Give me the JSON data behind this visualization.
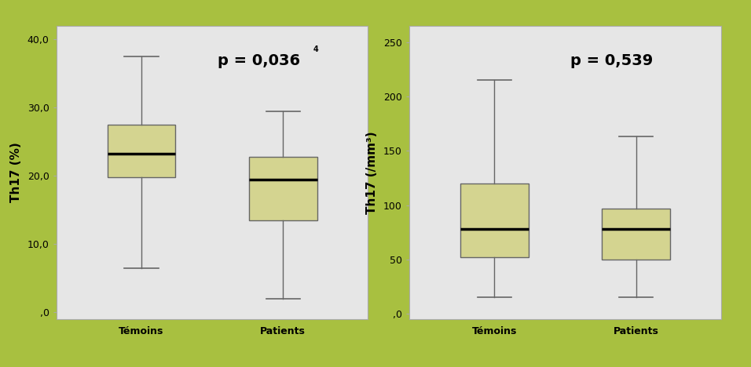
{
  "left": {
    "ylabel": "Th17 (%)",
    "ylim": [
      -1,
      42
    ],
    "yticks": [
      0,
      10.0,
      20.0,
      30.0,
      40.0
    ],
    "yticklabels": [
      ",0",
      "10,0",
      "20,0",
      "30,0",
      "40,0"
    ],
    "pvalue": "p = 0,036",
    "pvalue_superscript": "4",
    "temoins": {
      "whislo": 6.5,
      "q1": 19.8,
      "med": 23.3,
      "q3": 27.5,
      "whishi": 37.5
    },
    "patients": {
      "whislo": 2.0,
      "q1": 13.5,
      "med": 19.5,
      "q3": 22.8,
      "whishi": 29.5
    }
  },
  "right": {
    "ylabel": "Th17 (/mm³)",
    "ylim": [
      -5,
      265
    ],
    "yticks": [
      0,
      50,
      100,
      150,
      200,
      250
    ],
    "yticklabels": [
      ",0",
      "50",
      "100",
      "150",
      "200",
      "250"
    ],
    "pvalue": "p = 0,539",
    "pvalue_superscript": "",
    "temoins": {
      "whislo": 15,
      "q1": 52,
      "med": 78,
      "q3": 120,
      "whishi": 215
    },
    "patients": {
      "whislo": 15,
      "q1": 50,
      "med": 78,
      "q3": 97,
      "whishi": 163
    }
  },
  "box_color": "#d4d490",
  "box_edge_color": "#666666",
  "median_color": "#000000",
  "whisker_color": "#666666",
  "cap_color": "#666666",
  "plot_bg_color": "#e6e6e6",
  "outer_bg_color": "#a8c040",
  "spine_color": "#aaaaaa",
  "xlabel_temoins": "Témoins",
  "xlabel_patients": "Patients",
  "tick_fontsize": 9,
  "label_fontsize": 11,
  "xlabel_fontsize": 11,
  "pvalue_fontsize": 14
}
